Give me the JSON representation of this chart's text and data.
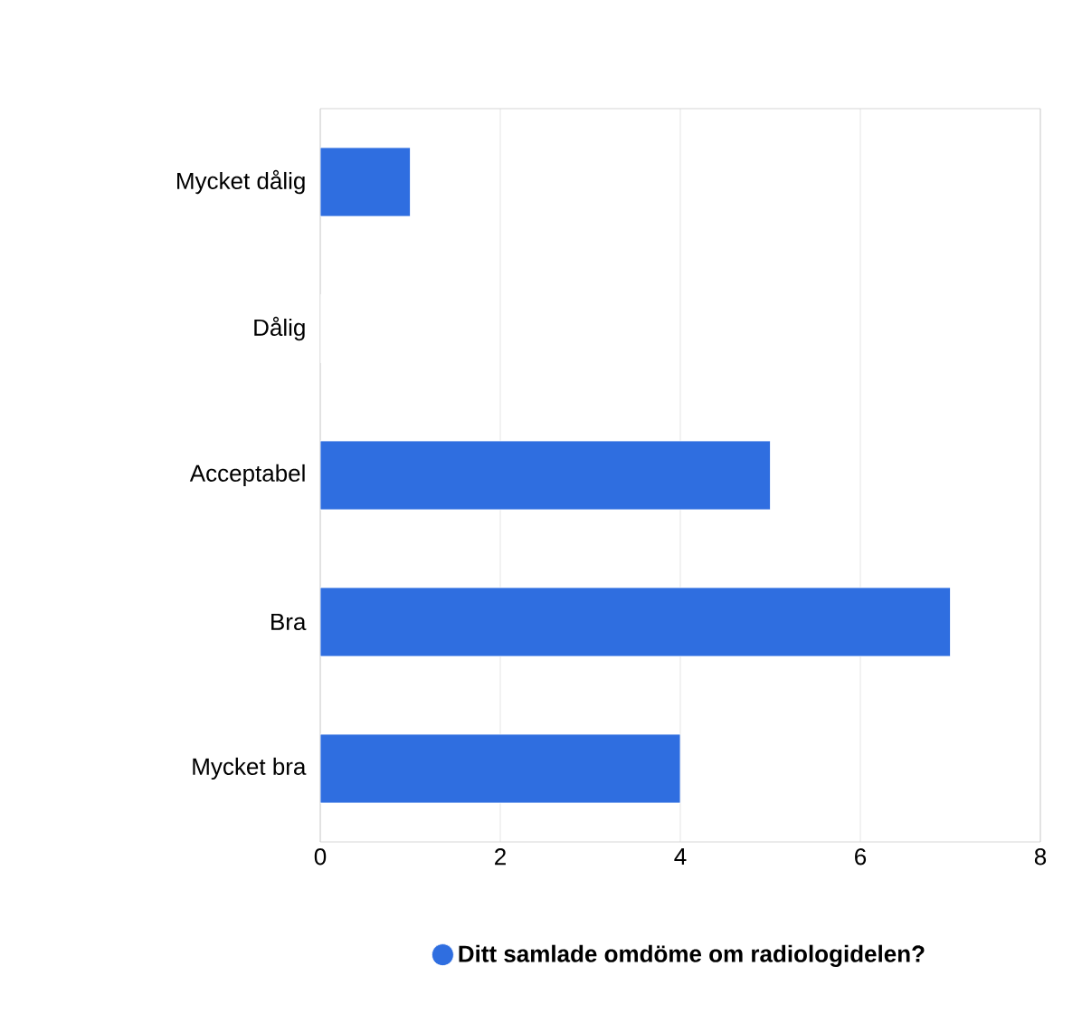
{
  "chart_data": {
    "type": "bar",
    "orientation": "horizontal",
    "categories": [
      "Mycket dålig",
      "Dålig",
      "Acceptabel",
      "Bra",
      "Mycket bra"
    ],
    "series": [
      {
        "name": "Ditt samlade omdöme om radiologidelen?",
        "color": "#2f6ee0",
        "values": [
          1,
          0,
          5,
          7,
          4
        ]
      }
    ],
    "xlim": [
      0,
      8
    ],
    "xticks": [
      0,
      2,
      4,
      6,
      8
    ],
    "grid": "x",
    "legend": "bottom"
  }
}
